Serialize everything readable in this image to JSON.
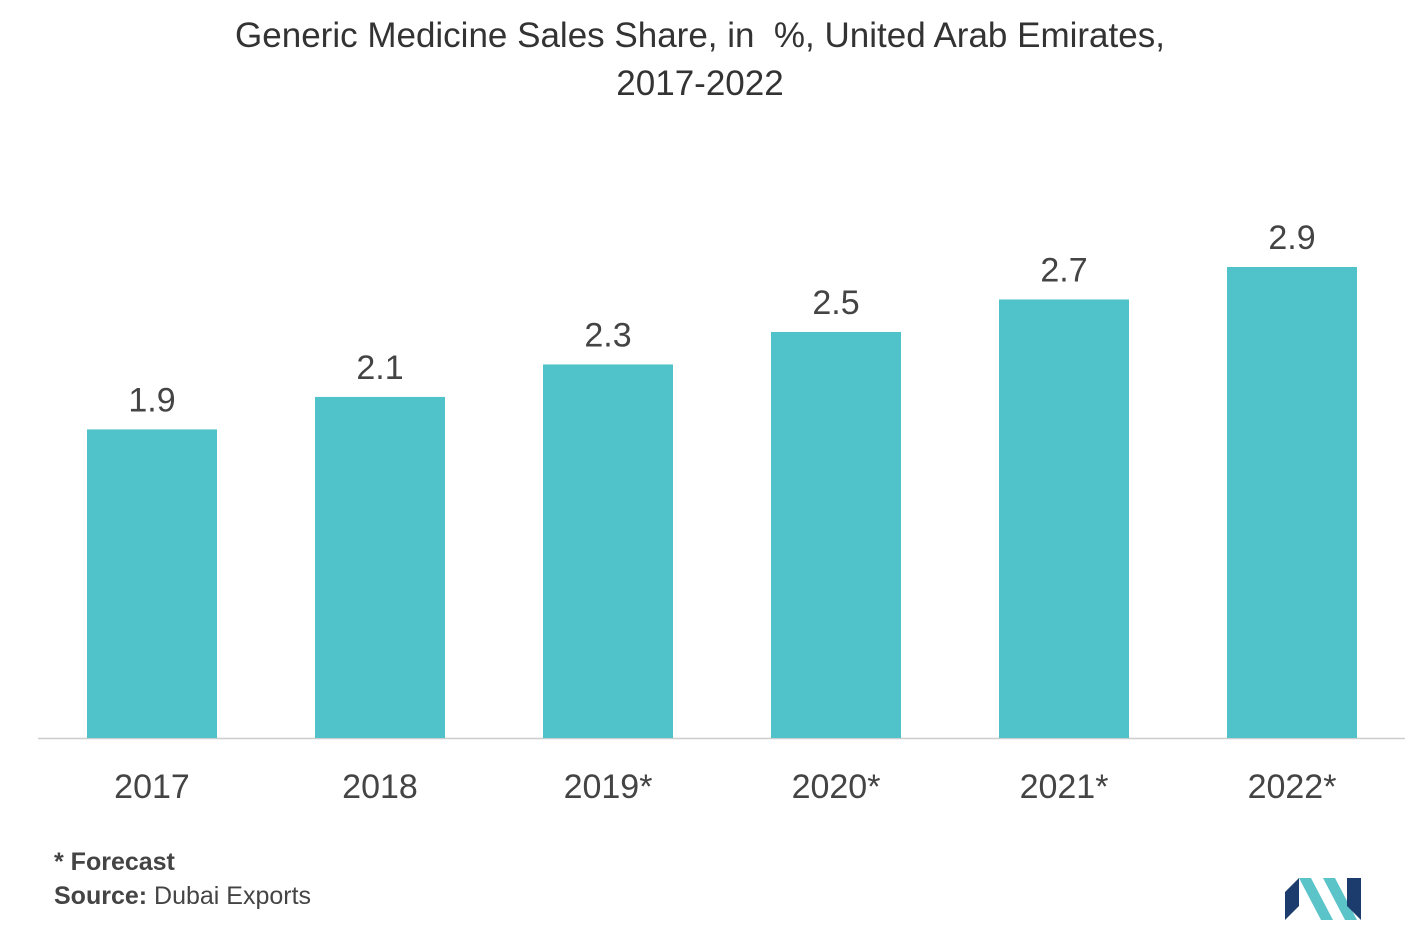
{
  "title": {
    "line1": "Generic Medicine Sales Share, in  %, United Arab Emirates,",
    "line2": "2017-2022"
  },
  "chart_data": {
    "type": "bar",
    "title": "Generic Medicine Sales Share, in  %, United Arab Emirates, 2017-2022",
    "categories": [
      "2017",
      "2018",
      "2019*",
      "2020*",
      "2021*",
      "2022*"
    ],
    "values": [
      1.9,
      2.1,
      2.3,
      2.5,
      2.7,
      2.9
    ],
    "value_labels": [
      "1.9",
      "2.1",
      "2.3",
      "2.5",
      "2.7",
      "2.9"
    ],
    "xlabel": "",
    "ylabel": "",
    "ylim": [
      0,
      3.3
    ],
    "grid": false,
    "legend": "none",
    "bar_color": "#50c2c9",
    "axis_color": "#cccccc",
    "label_color": "#444444"
  },
  "footer": {
    "forecast_note": "* Forecast",
    "source_label": "Source:",
    "source_value": " Dubai Exports"
  },
  "logo": {
    "icon": "mordor-intelligence-logo",
    "colors": [
      "#1d3c6e",
      "#5bc4c9"
    ]
  }
}
